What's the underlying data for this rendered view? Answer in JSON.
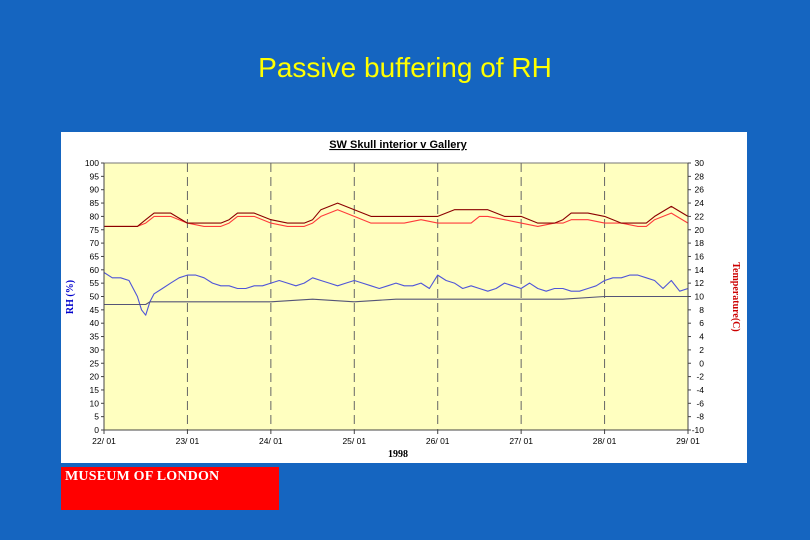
{
  "slide": {
    "title": "Passive buffering of RH",
    "logo_text": "MUSEUM OF LONDON"
  },
  "colors": {
    "background": "#1565c0",
    "title": "#ffff00",
    "plot_bg": "#ffffc0",
    "rh_interior": "#4f55d8",
    "rh_gallery": "#555577",
    "temp_interior": "#ff3b3b",
    "temp_gallery": "#8b0000",
    "ylabel_left": "#0000cc",
    "ylabel_right": "#cc0000",
    "logo_bg": "#ff0000"
  },
  "chart_data": {
    "type": "line",
    "title": "SW Skull interior v Gallery",
    "xlabel": "1998",
    "ylabel": "RH (%)",
    "y2label": "Temperature(C)",
    "x_categories": [
      "22/ 01",
      "23/ 01",
      "24/ 01",
      "25/ 01",
      "26/ 01",
      "27/ 01",
      "28/ 01",
      "29/ 01"
    ],
    "xlim": [
      0,
      7
    ],
    "ylim": [
      0,
      100
    ],
    "y_ticks": [
      "0",
      "5",
      "10",
      "15",
      "20",
      "25",
      "30",
      "35",
      "40",
      "45",
      "50",
      "55",
      "60",
      "65",
      "70",
      "75",
      "80",
      "85",
      "90",
      "95",
      "100"
    ],
    "y2lim": [
      -10,
      30
    ],
    "y2_ticks": [
      "-10",
      "-8",
      "-6",
      "-4",
      "-2",
      "0",
      "2",
      "4",
      "6",
      "8",
      "10",
      "12",
      "14",
      "16",
      "18",
      "20",
      "22",
      "24",
      "26",
      "28",
      "30"
    ],
    "grid": "vertical dashed at each day",
    "series": [
      {
        "axis": "left",
        "color": "#4f55d8",
        "x": [
          0,
          0.1,
          0.2,
          0.3,
          0.4,
          0.45,
          0.5,
          0.55,
          0.6,
          0.7,
          0.8,
          0.9,
          1.0,
          1.1,
          1.2,
          1.3,
          1.4,
          1.5,
          1.6,
          1.7,
          1.8,
          1.9,
          2.0,
          2.1,
          2.2,
          2.3,
          2.4,
          2.5,
          2.6,
          2.7,
          2.8,
          2.9,
          3.0,
          3.1,
          3.2,
          3.3,
          3.4,
          3.5,
          3.6,
          3.7,
          3.8,
          3.9,
          4.0,
          4.1,
          4.2,
          4.3,
          4.4,
          4.5,
          4.6,
          4.7,
          4.8,
          4.9,
          5.0,
          5.1,
          5.2,
          5.3,
          5.4,
          5.5,
          5.6,
          5.7,
          5.8,
          5.9,
          6.0,
          6.1,
          6.2,
          6.3,
          6.4,
          6.5,
          6.6,
          6.7,
          6.8,
          6.9,
          7.0
        ],
        "y": [
          59,
          57,
          57,
          56,
          50,
          45,
          43,
          48,
          51,
          53,
          55,
          57,
          58,
          58,
          57,
          55,
          54,
          54,
          53,
          53,
          54,
          54,
          55,
          56,
          55,
          54,
          55,
          57,
          56,
          55,
          54,
          55,
          56,
          55,
          54,
          53,
          54,
          55,
          54,
          54,
          55,
          53,
          58,
          56,
          55,
          53,
          54,
          53,
          52,
          53,
          55,
          54,
          53,
          55,
          53,
          52,
          53,
          53,
          52,
          52,
          53,
          54,
          56,
          57,
          57,
          58,
          58,
          57,
          56,
          53,
          56,
          52,
          53
        ]
      },
      {
        "axis": "left",
        "color": "#555577",
        "x": [
          0,
          0.3,
          0.5,
          0.55,
          1.0,
          1.5,
          2.0,
          2.5,
          3.0,
          3.5,
          4.0,
          4.5,
          5.0,
          5.5,
          6.0,
          6.5,
          7.0
        ],
        "y": [
          47,
          47,
          47,
          48,
          48,
          48,
          48,
          49,
          48,
          49,
          49,
          49,
          49,
          49,
          50,
          50,
          50
        ]
      },
      {
        "axis": "right",
        "color": "#ff3b3b",
        "x": [
          0,
          0.2,
          0.4,
          0.5,
          0.6,
          0.8,
          1.0,
          1.2,
          1.4,
          1.5,
          1.6,
          1.8,
          2.0,
          2.2,
          2.4,
          2.5,
          2.6,
          2.8,
          3.0,
          3.2,
          3.4,
          3.5,
          3.6,
          3.8,
          4.0,
          4.2,
          4.4,
          4.5,
          4.6,
          4.8,
          5.0,
          5.2,
          5.4,
          5.5,
          5.6,
          5.8,
          6.0,
          6.2,
          6.4,
          6.5,
          6.6,
          6.8,
          7.0
        ],
        "y": [
          20.5,
          20.5,
          20.5,
          21,
          22,
          22,
          21,
          20.5,
          20.5,
          21,
          22,
          22,
          21,
          20.5,
          20.5,
          21,
          22,
          23,
          22,
          21,
          21,
          21,
          21,
          21.5,
          21,
          21,
          21,
          22,
          22,
          21.5,
          21,
          20.5,
          21,
          21,
          21.5,
          21.5,
          21,
          21,
          20.5,
          20.5,
          21.5,
          22.5,
          21
        ]
      },
      {
        "axis": "right",
        "color": "#8b0000",
        "x": [
          0,
          0.2,
          0.4,
          0.5,
          0.6,
          0.8,
          1.0,
          1.2,
          1.4,
          1.5,
          1.6,
          1.8,
          2.0,
          2.2,
          2.4,
          2.5,
          2.6,
          2.8,
          3.0,
          3.2,
          3.4,
          3.5,
          3.6,
          3.8,
          4.0,
          4.2,
          4.4,
          4.5,
          4.6,
          4.8,
          5.0,
          5.2,
          5.4,
          5.5,
          5.6,
          5.8,
          6.0,
          6.2,
          6.4,
          6.5,
          6.6,
          6.8,
          7.0
        ],
        "y": [
          20.5,
          20.5,
          20.5,
          21.5,
          22.5,
          22.5,
          21,
          21,
          21,
          21.5,
          22.5,
          22.5,
          21.5,
          21,
          21,
          21.5,
          23,
          24,
          23,
          22,
          22,
          22,
          22,
          22,
          22,
          23,
          23,
          23,
          23,
          22,
          22,
          21,
          21,
          21.5,
          22.5,
          22.5,
          22,
          21,
          21,
          21,
          22,
          23.5,
          22
        ]
      }
    ]
  }
}
